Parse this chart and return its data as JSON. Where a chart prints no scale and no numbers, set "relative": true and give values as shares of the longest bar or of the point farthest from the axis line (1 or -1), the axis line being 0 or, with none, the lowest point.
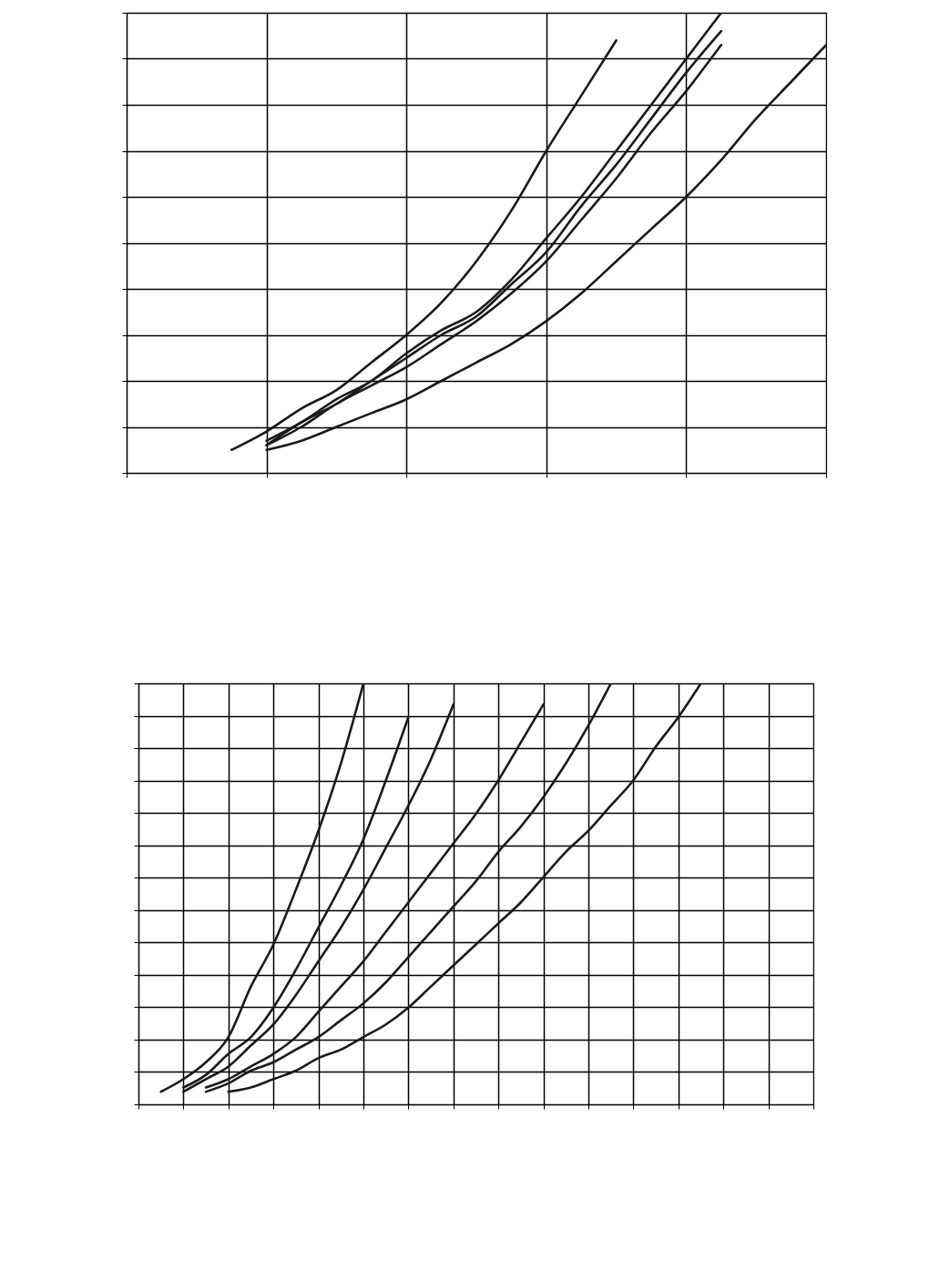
{
  "chart_data": [
    {
      "type": "line",
      "relative": true,
      "grid": true,
      "categories": [
        null,
        null,
        null,
        null,
        null,
        null,
        null,
        null,
        null,
        null,
        null,
        null,
        null,
        null,
        null,
        null,
        null,
        null,
        null,
        null,
        null
      ],
      "series": [
        {
          "color": "#1a1a1a",
          "values": [
            null,
            null,
            null,
            0.05,
            0.09,
            0.14,
            0.18,
            0.24,
            0.3,
            0.37,
            0.46,
            0.57,
            0.7,
            0.82,
            0.94,
            null,
            null,
            null,
            null,
            null,
            null
          ]
        },
        {
          "color": "#1a1a1a",
          "values": [
            null,
            null,
            null,
            null,
            0.07,
            0.11,
            0.16,
            0.2,
            0.26,
            0.31,
            0.35,
            0.42,
            0.51,
            0.6,
            0.7,
            0.8,
            0.9,
            1.0,
            null,
            null,
            null
          ]
        },
        {
          "color": "#1a1a1a",
          "values": [
            null,
            null,
            null,
            null,
            0.06,
            0.11,
            0.15,
            0.2,
            0.25,
            0.3,
            0.34,
            0.41,
            0.48,
            0.58,
            0.67,
            0.77,
            0.87,
            0.96,
            null,
            null,
            null
          ]
        },
        {
          "color": "#1a1a1a",
          "values": [
            null,
            null,
            null,
            null,
            0.06,
            0.1,
            0.15,
            0.19,
            0.23,
            0.28,
            0.33,
            0.39,
            0.46,
            0.55,
            0.64,
            0.74,
            0.83,
            0.93,
            null,
            null,
            null
          ]
        },
        {
          "color": "#1a1a1a",
          "values": [
            null,
            null,
            null,
            null,
            0.05,
            0.07,
            0.1,
            0.13,
            0.16,
            0.2,
            0.24,
            0.28,
            0.33,
            0.39,
            0.46,
            0.53,
            0.6,
            0.68,
            0.77,
            0.85,
            0.93
          ]
        }
      ]
    },
    {
      "type": "line",
      "relative": true,
      "grid": true,
      "categories": [
        null,
        null,
        null,
        null,
        null,
        null,
        null,
        null,
        null,
        null,
        null,
        null,
        null,
        null,
        null,
        null,
        null,
        null,
        null,
        null,
        null,
        null,
        null,
        null,
        null,
        null,
        null,
        null,
        null,
        null,
        null
      ],
      "series": [
        {
          "color": "#1a1a1a",
          "values": [
            null,
            0.03,
            0.06,
            0.1,
            0.16,
            0.28,
            0.38,
            0.51,
            0.65,
            0.81,
            1.0,
            null,
            null,
            null,
            null,
            null,
            null,
            null,
            null,
            null,
            null,
            null,
            null,
            null,
            null,
            null,
            null,
            null,
            null,
            null,
            null
          ]
        },
        {
          "color": "#1a1a1a",
          "values": [
            null,
            null,
            0.04,
            0.07,
            0.12,
            0.16,
            0.23,
            0.32,
            0.42,
            0.52,
            0.63,
            0.77,
            0.92,
            null,
            null,
            null,
            null,
            null,
            null,
            null,
            null,
            null,
            null,
            null,
            null,
            null,
            null,
            null,
            null,
            null,
            null
          ]
        },
        {
          "color": "#1a1a1a",
          "values": [
            null,
            null,
            0.03,
            0.06,
            0.09,
            0.14,
            0.19,
            0.26,
            0.34,
            0.42,
            0.51,
            0.61,
            0.71,
            0.82,
            0.95,
            null,
            null,
            null,
            null,
            null,
            null,
            null,
            null,
            null,
            null,
            null,
            null,
            null,
            null,
            null,
            null
          ]
        },
        {
          "color": "#1a1a1a",
          "values": [
            null,
            null,
            null,
            0.04,
            0.06,
            0.09,
            0.12,
            0.16,
            0.22,
            0.28,
            0.34,
            0.41,
            0.48,
            0.55,
            0.62,
            0.69,
            0.77,
            0.86,
            0.95,
            null,
            null,
            null,
            null,
            null,
            null,
            null,
            null,
            null,
            null,
            null,
            null
          ]
        },
        {
          "color": "#1a1a1a",
          "values": [
            null,
            null,
            null,
            0.03,
            0.05,
            0.08,
            0.1,
            0.13,
            0.16,
            0.2,
            0.24,
            0.29,
            0.35,
            0.41,
            0.47,
            0.53,
            0.6,
            0.66,
            0.73,
            0.81,
            0.9,
            1.0,
            null,
            null,
            null,
            null,
            null,
            null,
            null,
            null,
            null
          ]
        },
        {
          "color": "#1a1a1a",
          "values": [
            null,
            null,
            null,
            null,
            0.03,
            0.04,
            0.06,
            0.08,
            0.11,
            0.13,
            0.16,
            0.19,
            0.23,
            0.28,
            0.33,
            0.38,
            0.43,
            0.48,
            0.54,
            0.6,
            0.65,
            0.71,
            0.77,
            0.85,
            0.92,
            1.0,
            null,
            null,
            null,
            null,
            null
          ]
        }
      ]
    }
  ]
}
